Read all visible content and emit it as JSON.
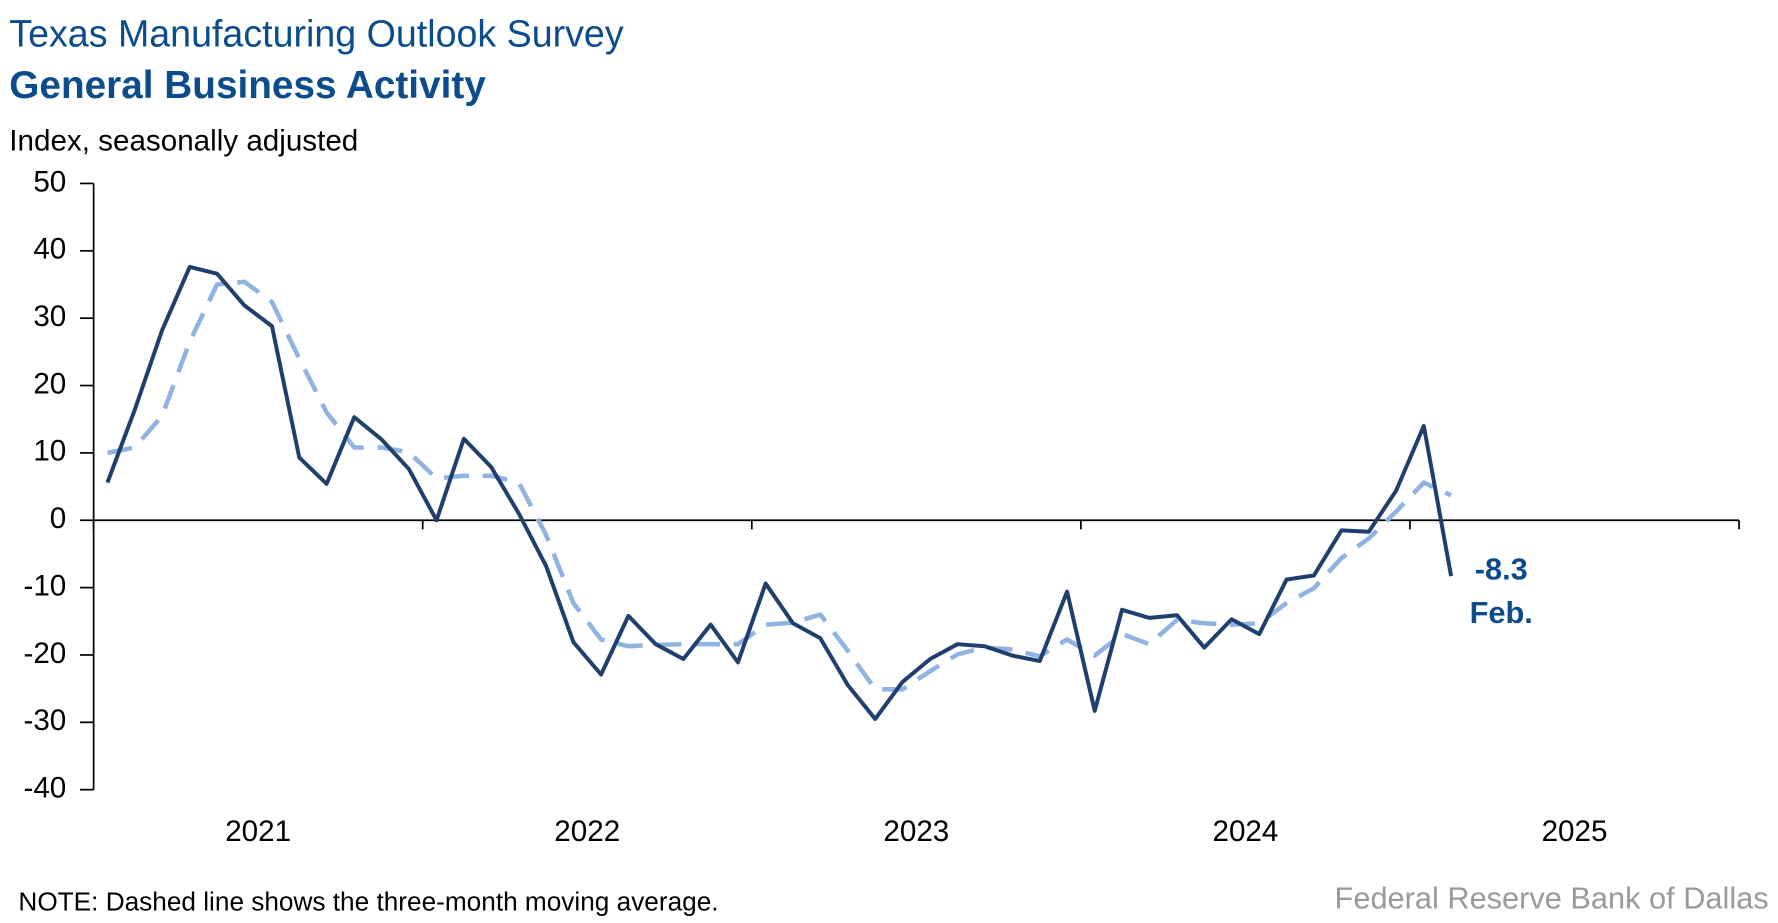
{
  "chart_data": {
    "type": "line",
    "title": "Texas Manufacturing Outlook Survey",
    "subtitle": "General Business Activity",
    "y_label": "Index, seasonally adjusted",
    "note": "NOTE: Dashed line shows the three-month moving average.",
    "source": "Federal Reserve Bank of Dallas",
    "annotation": "Feb.",
    "x": [
      2021.042,
      2021.125,
      2021.208,
      2021.292,
      2021.375,
      2021.458,
      2021.542,
      2021.625,
      2021.708,
      2021.792,
      2021.875,
      2021.958,
      2022.042,
      2022.125,
      2022.208,
      2022.292,
      2022.375,
      2022.458,
      2022.542,
      2022.625,
      2022.708,
      2022.792,
      2022.875,
      2022.958,
      2023.042,
      2023.125,
      2023.208,
      2023.292,
      2023.375,
      2023.458,
      2023.542,
      2023.625,
      2023.708,
      2023.792,
      2023.875,
      2023.958,
      2024.042,
      2024.125,
      2024.208,
      2024.292,
      2024.375,
      2024.458,
      2024.542,
      2024.625,
      2024.708,
      2024.792,
      2024.875,
      2024.958,
      2025.042,
      2025.125
    ],
    "series": [
      {
        "color": "#1f3f6e",
        "style": "solid",
        "values": [
          5.6,
          16.4,
          28.2,
          37.6,
          36.6,
          31.9,
          28.8,
          9.3,
          5.4,
          15.3,
          12.0,
          7.6,
          0.0,
          12.1,
          7.9,
          1.0,
          -6.8,
          -18.1,
          -22.9,
          -14.2,
          -18.4,
          -20.6,
          -15.5,
          -21.1,
          -9.4,
          -15.3,
          -17.5,
          -24.5,
          -29.5,
          -24.0,
          -20.6,
          -18.4,
          -18.7,
          -20.1,
          -20.9,
          -10.6,
          -28.3,
          -13.3,
          -14.5,
          -14.1,
          -18.9,
          -14.7,
          -16.9,
          -8.8,
          -8.2,
          -1.5,
          -1.7,
          4.4,
          14.0,
          -8.3
        ]
      },
      {
        "color": "#8fb4e3",
        "style": "dashed",
        "values": [
          10.0,
          10.8,
          15.5,
          26.5,
          35.0,
          35.4,
          32.4,
          24.0,
          16.0,
          10.8,
          10.8,
          10.1,
          6.2,
          6.6,
          6.6,
          5.6,
          -2.2,
          -12.3,
          -17.7,
          -18.7,
          -18.5,
          -18.4,
          -18.4,
          -18.4,
          -15.5,
          -15.2,
          -14.0,
          -19.4,
          -25.1,
          -25.1,
          -22.4,
          -19.9,
          -18.9,
          -19.2,
          -20.2,
          -17.7,
          -20.1,
          -16.9,
          -18.4,
          -14.8,
          -15.3,
          -15.5,
          -15.3,
          -12.3,
          -10.1,
          -5.6,
          -2.7,
          1.3,
          5.6,
          3.7
        ]
      }
    ],
    "xlim": [
      2021,
      2026
    ],
    "xticks": [
      {
        "value": 2021.5,
        "label": "2021"
      },
      {
        "value": 2022.5,
        "label": "2022"
      },
      {
        "value": 2023.5,
        "label": "2023"
      },
      {
        "value": 2024.5,
        "label": "2024"
      },
      {
        "value": 2025.5,
        "label": "2025"
      }
    ],
    "year_boundaries": [
      2021,
      2022,
      2023,
      2024,
      2025,
      2026
    ],
    "ylim": [
      -40,
      50
    ],
    "yticks": [
      -40,
      -30,
      -20,
      -10,
      0,
      10,
      20,
      30,
      40,
      50
    ],
    "grid": false
  }
}
